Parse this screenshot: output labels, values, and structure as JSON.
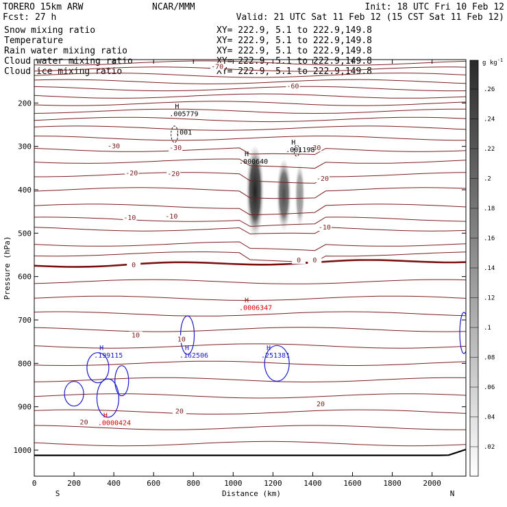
{
  "header": {
    "model": "TORERO  15km ARW",
    "org": "NCAR/MMM",
    "init": "Init: 18 UTC Fri 10 Feb 12",
    "fcst": "Fcst:    27 h",
    "valid": "Valid: 21 UTC Sat 11 Feb 12 (15 CST Sat 11 Feb 12)"
  },
  "fields": [
    {
      "label": "Snow mixing ratio",
      "color": "#000000",
      "xy": "XY= 222.9,  5.1 to 222.9,149.8"
    },
    {
      "label": "Temperature",
      "color": "#8b0000",
      "xy": "XY= 222.9,  5.1 to 222.9,149.8"
    },
    {
      "label": "Rain water mixing ratio",
      "color": "#d40000",
      "xy": "XY= 222.9,  5.1 to 222.9,149.8"
    },
    {
      "label": "Cloud water mixing ratio",
      "color": "#1a1acc",
      "xy": "XY= 222.9,  5.1 to 222.9,149.8"
    },
    {
      "label": "Cloud ice mixing ratio",
      "color": "#000000",
      "xy": "XY= 222.9,  5.1 to 222.9,149.8"
    }
  ],
  "chart_data": {
    "type": "heatmap",
    "xlabel": "Distance (km)",
    "ylabel": "Pressure (hPa)",
    "xlim": [
      0,
      2170
    ],
    "ylim": [
      1060,
      100
    ],
    "x_ticks": [
      0,
      200,
      400,
      600,
      800,
      1000,
      1200,
      1400,
      1600,
      1800,
      2000
    ],
    "y_ticks": [
      200,
      300,
      400,
      500,
      600,
      700,
      800,
      900,
      1000
    ],
    "x_ends": [
      "S",
      "N"
    ],
    "colorbar": {
      "unit_base": "g kg",
      "unit_exp": "-1",
      "levels": [
        ".02",
        ".04",
        ".06",
        ".08",
        ".1",
        ".12",
        ".14",
        ".16",
        ".18",
        ".2",
        ".22",
        ".24",
        ".26"
      ]
    },
    "temperature_labels": [
      {
        "text": "-70",
        "x": 920,
        "p": 120
      },
      {
        "text": "-60",
        "x": 1300,
        "p": 165
      },
      {
        "text": "-30",
        "x": 400,
        "p": 303
      },
      {
        "text": "-30",
        "x": 710,
        "p": 307
      },
      {
        "text": "-30",
        "x": 1410,
        "p": 307
      },
      {
        "text": "-20",
        "x": 490,
        "p": 365
      },
      {
        "text": "-20",
        "x": 700,
        "p": 367
      },
      {
        "text": "-20",
        "x": 1450,
        "p": 378
      },
      {
        "text": "-10",
        "x": 480,
        "p": 468
      },
      {
        "text": "-10",
        "x": 690,
        "p": 465
      },
      {
        "text": "-10",
        "x": 1460,
        "p": 490
      },
      {
        "text": "0",
        "x": 500,
        "p": 577
      },
      {
        "text": "0",
        "x": 1330,
        "p": 566
      },
      {
        "text": "0",
        "x": 1410,
        "p": 566
      },
      {
        "text": "10",
        "x": 510,
        "p": 739
      },
      {
        "text": "10",
        "x": 740,
        "p": 748
      },
      {
        "text": "20",
        "x": 250,
        "p": 939
      },
      {
        "text": "20",
        "x": 730,
        "p": 914
      },
      {
        "text": "20",
        "x": 1440,
        "p": 897
      }
    ],
    "extrema_labels": [
      {
        "mark": "H",
        "value": ".005779",
        "x": 680,
        "p": 230,
        "field": "Cloud ice mixing ratio"
      },
      {
        "mark": "",
        "value": ".001",
        "x": 710,
        "p": 273,
        "field": "Cloud ice mixing ratio"
      },
      {
        "mark": "H",
        "value": ".000640",
        "x": 1030,
        "p": 340,
        "field": "Cloud ice mixing ratio"
      },
      {
        "mark": "H",
        "value": ".001198",
        "x": 1265,
        "p": 313,
        "field": "Cloud ice mixing ratio"
      },
      {
        "mark": "H",
        "value": ".0006347",
        "x": 1030,
        "p": 677,
        "field": "Rain water mixing ratio"
      },
      {
        "mark": "H",
        "value": ".0000424",
        "x": 320,
        "p": 942,
        "field": "Rain water mixing ratio"
      },
      {
        "mark": "H",
        "value": ".199115",
        "x": 300,
        "p": 787,
        "field": "Cloud water mixing ratio"
      },
      {
        "mark": "H",
        "value": ".162506",
        "x": 730,
        "p": 787,
        "field": "Cloud water mixing ratio"
      },
      {
        "mark": "H",
        "value": ".251381",
        "x": 1140,
        "p": 787,
        "field": "Cloud water mixing ratio"
      }
    ],
    "snow_columns": [
      {
        "x": 1110,
        "p_top": 300,
        "p_bottom": 530,
        "max": 0.26
      },
      {
        "x": 1255,
        "p_top": 330,
        "p_bottom": 510,
        "max": 0.18
      },
      {
        "x": 1335,
        "p_top": 340,
        "p_bottom": 500,
        "max": 0.06
      }
    ]
  }
}
